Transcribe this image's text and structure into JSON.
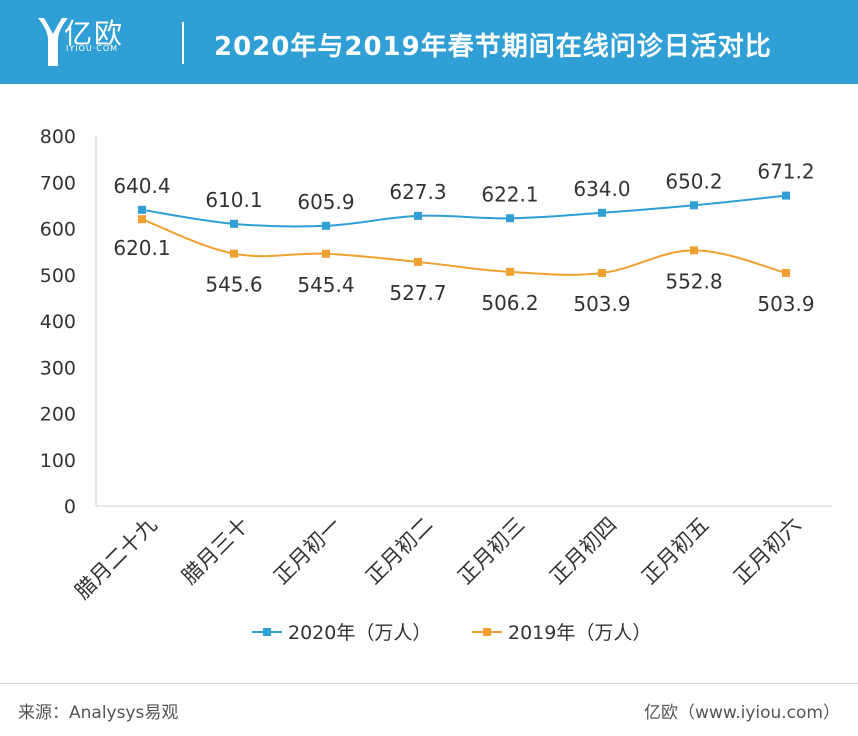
{
  "header": {
    "logo_text": "亿欧",
    "logo_sub": "IYIOU·COM",
    "title": "2020年与2019年春节期间在线问诊日活对比"
  },
  "footer": {
    "source": "来源：Analysys易观",
    "credit": "亿欧（www.iyiou.com）"
  },
  "colors": {
    "header_bg": "#2f9fd6",
    "series_2020": "#2f9fd6",
    "series_2019": "#f0a030"
  },
  "chart_data": {
    "type": "line",
    "categories": [
      "腊月二十九",
      "腊月三十",
      "正月初一",
      "正月初二",
      "正月初三",
      "正月初四",
      "正月初五",
      "正月初六"
    ],
    "ylim": [
      0,
      800
    ],
    "yticks": [
      0,
      100,
      200,
      300,
      400,
      500,
      600,
      700,
      800
    ],
    "grid": false,
    "legend_position": "bottom",
    "series": [
      {
        "name": "2020年（万人）",
        "values": [
          640.4,
          610.1,
          605.9,
          627.3,
          622.1,
          634.0,
          650.2,
          671.2
        ],
        "labels": [
          "640.4",
          "610.1",
          "605.9",
          "627.3",
          "622.1",
          "634.0",
          "650.2",
          "671.2"
        ]
      },
      {
        "name": "2019年（万人）",
        "values": [
          620.1,
          545.6,
          545.4,
          527.7,
          506.2,
          503.9,
          552.8,
          503.9
        ],
        "labels": [
          "620.1",
          "545.6",
          "545.4",
          "527.7",
          "506.2",
          "503.9",
          "552.8",
          "503.9"
        ]
      }
    ]
  }
}
